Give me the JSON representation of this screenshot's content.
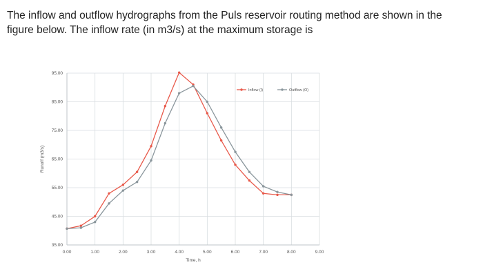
{
  "question": {
    "line1": "The inflow and outflow hydrographs from the Puls reservoir routing method are shown in the",
    "line2": "figure below. The inflow rate (in m3/s) at the maximum storage is"
  },
  "chart_data": {
    "type": "line",
    "xlabel": "Time, h",
    "ylabel": "Runoff (m3/s)",
    "xlim": [
      0,
      9
    ],
    "ylim": [
      35,
      95
    ],
    "x_ticks": [
      "0.00",
      "1.00",
      "2.00",
      "3.00",
      "4.00",
      "5.00",
      "6.00",
      "7.00",
      "8.00",
      "9.00"
    ],
    "y_ticks": [
      "35.00",
      "45.00",
      "55.00",
      "65.00",
      "75.00",
      "85.00",
      "95.00"
    ],
    "grid": true,
    "legend_position": "top-right",
    "series": [
      {
        "name": "Inflow (I)",
        "color": "#e8594a",
        "points": [
          [
            0.0,
            40.7
          ],
          [
            0.5,
            41.7
          ],
          [
            1.0,
            45.0
          ],
          [
            1.5,
            53.0
          ],
          [
            2.0,
            56.0
          ],
          [
            2.5,
            60.5
          ],
          [
            3.0,
            69.5
          ],
          [
            3.5,
            83.5
          ],
          [
            4.0,
            95.2
          ],
          [
            4.5,
            91.0
          ],
          [
            5.0,
            81.0
          ],
          [
            5.5,
            71.5
          ],
          [
            6.0,
            63.0
          ],
          [
            6.5,
            57.5
          ],
          [
            7.0,
            53.0
          ],
          [
            7.5,
            52.5
          ],
          [
            8.0,
            52.5
          ]
        ]
      },
      {
        "name": "Outflow (O)",
        "color": "#8a969c",
        "points": [
          [
            0.0,
            40.7
          ],
          [
            0.5,
            41.0
          ],
          [
            1.0,
            43.0
          ],
          [
            1.5,
            49.5
          ],
          [
            2.0,
            54.0
          ],
          [
            2.5,
            57.0
          ],
          [
            3.0,
            64.5
          ],
          [
            3.5,
            77.5
          ],
          [
            4.0,
            88.0
          ],
          [
            4.5,
            90.5
          ],
          [
            5.0,
            85.0
          ],
          [
            5.5,
            76.0
          ],
          [
            6.0,
            67.5
          ],
          [
            6.5,
            60.5
          ],
          [
            7.0,
            55.5
          ],
          [
            7.5,
            53.5
          ],
          [
            8.0,
            52.5
          ]
        ]
      }
    ]
  }
}
